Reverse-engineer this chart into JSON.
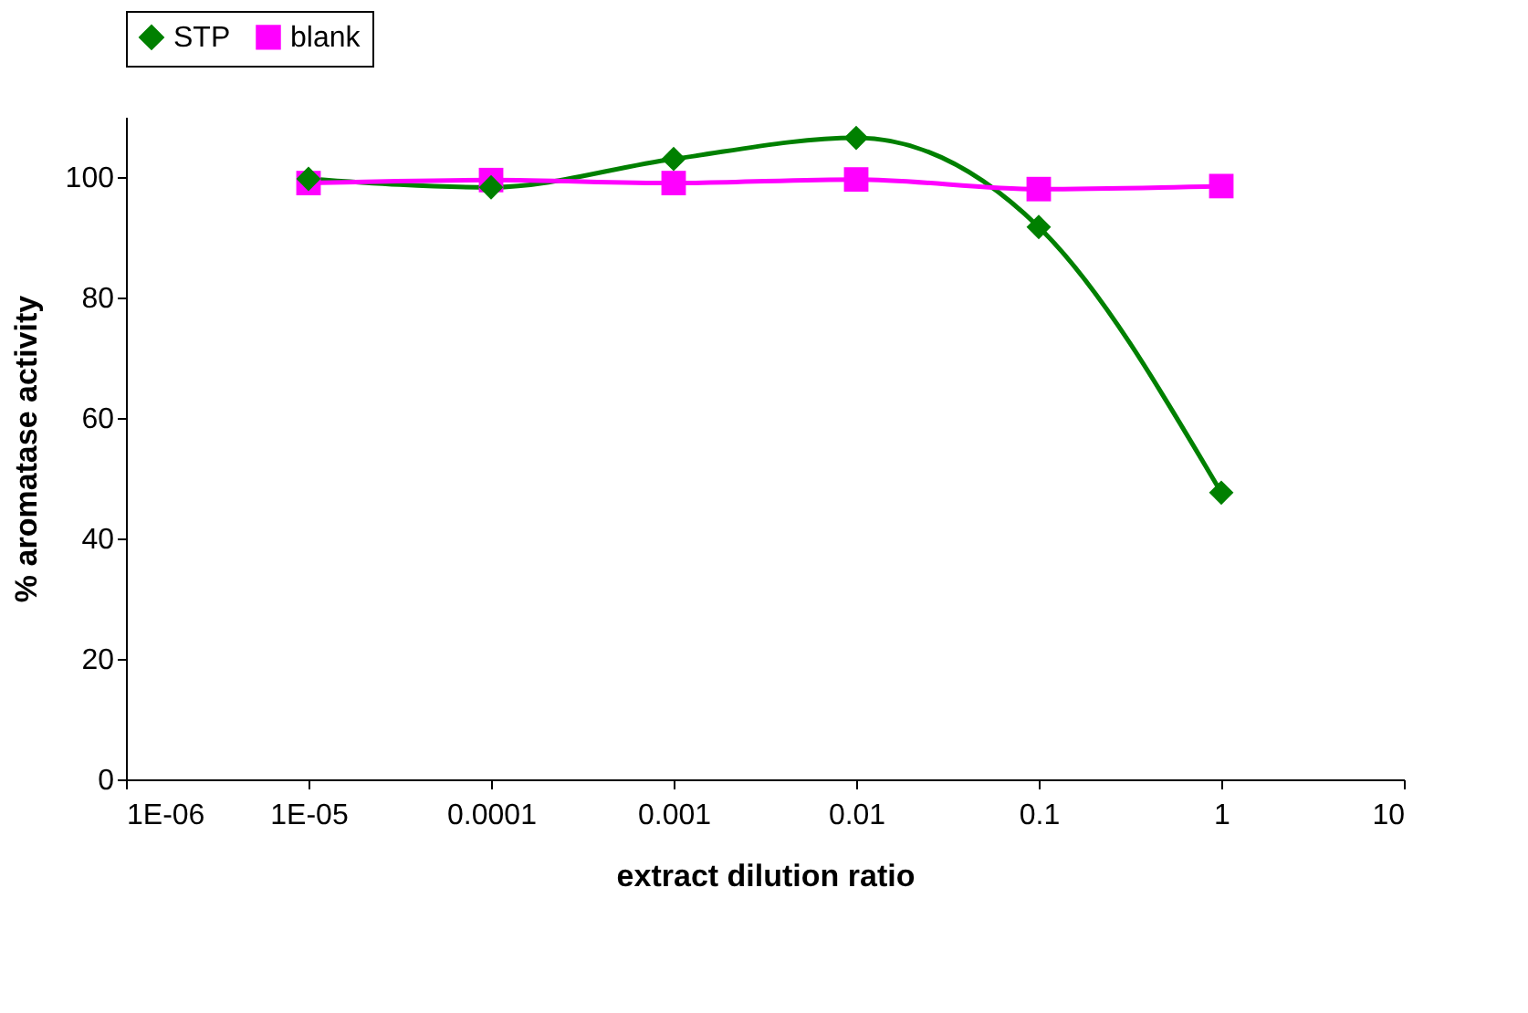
{
  "chart_data": {
    "type": "line",
    "xlabel": "extract dilution ratio",
    "ylabel": "% aromatase activity",
    "x": [
      1e-05,
      0.0001,
      0.001,
      0.01,
      0.1,
      1
    ],
    "series": [
      {
        "name": "STP",
        "color": "#008000",
        "marker": "diamond",
        "values": [
          99.7,
          98.3,
          103,
          106.5,
          91.7,
          47.6
        ]
      },
      {
        "name": "blank",
        "color": "#ff00ff",
        "marker": "square",
        "values": [
          99,
          99.5,
          99,
          99.6,
          98,
          98.5
        ]
      }
    ],
    "log": "x",
    "xlim": [
      1e-06,
      10
    ],
    "xticks": [
      {
        "value": 1e-06,
        "label": "1E-06"
      },
      {
        "value": 1e-05,
        "label": "1E-05"
      },
      0.0001,
      0.001,
      0.01,
      0.1,
      1,
      10
    ],
    "ylim": [
      0,
      110
    ],
    "yticks": [
      0,
      20,
      40,
      60,
      80,
      100
    ],
    "grid": false,
    "legend": "top"
  }
}
